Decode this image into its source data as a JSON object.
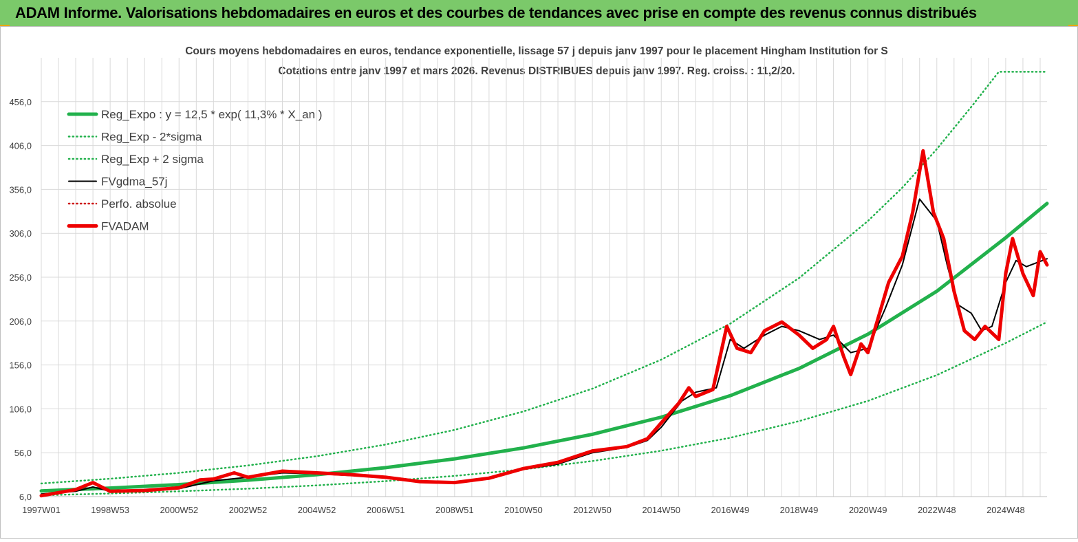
{
  "banner": {
    "title": "ADAM Informe. Valorisations hebdomadaires en euros et des courbes de tendances avec prise en compte des revenus connus distribués"
  },
  "colors": {
    "banner_bg": "#7bc96a",
    "reg_expo": "#22b14c",
    "band": "#22b14c",
    "fvgdma": "#000000",
    "perfo": "#cc0000",
    "fvadam": "#ee0000",
    "grid": "#d9d9d9"
  },
  "chart_data": {
    "type": "line",
    "title": "Cours moyens hebdomadaires en euros, tendance exponentielle, lissage 57 j depuis janv 1997 pour le placement Hingham Institution for S",
    "subtitle": "Cotations entre janv 1997 et mars 2026. Revenus DISTRIBUES depuis janv 1997. Reg. croiss. : 11,2/20.",
    "xlabel": "",
    "ylabel": "",
    "x_range_years": [
      1997.0,
      2026.2
    ],
    "ylim": [
      6,
      506
    ],
    "y_ticks": [
      "6,0",
      "56,0",
      "106,0",
      "156,0",
      "206,0",
      "256,0",
      "306,0",
      "356,0",
      "406,0",
      "456,0"
    ],
    "x_ticks": [
      {
        "label": "1997W01",
        "year": 1997.0
      },
      {
        "label": "1998W53",
        "year": 1999.0
      },
      {
        "label": "2000W52",
        "year": 2001.0
      },
      {
        "label": "2002W52",
        "year": 2003.0
      },
      {
        "label": "2004W52",
        "year": 2005.0
      },
      {
        "label": "2006W51",
        "year": 2007.0
      },
      {
        "label": "2008W51",
        "year": 2009.0
      },
      {
        "label": "2010W50",
        "year": 2011.0
      },
      {
        "label": "2012W50",
        "year": 2013.0
      },
      {
        "label": "2014W50",
        "year": 2015.0
      },
      {
        "label": "2016W49",
        "year": 2017.0
      },
      {
        "label": "2018W49",
        "year": 2019.0
      },
      {
        "label": "2020W49",
        "year": 2021.0
      },
      {
        "label": "2022W48",
        "year": 2023.0
      },
      {
        "label": "2024W48",
        "year": 2025.0
      }
    ],
    "grid": true,
    "legend_placement": "top-left",
    "legend": [
      {
        "name": "Reg_Expo : y = 12,5 * exp( 11,3% *  X_an )",
        "style": "solid-thick",
        "color": "#22b14c"
      },
      {
        "name": "Reg_Exp - 2*sigma",
        "style": "dotted",
        "color": "#22b14c"
      },
      {
        "name": "Reg_Exp + 2 sigma",
        "style": "dotted",
        "color": "#22b14c"
      },
      {
        "name": "FVgdma_57j",
        "style": "solid",
        "color": "#000000"
      },
      {
        "name": "Perfo. absolue",
        "style": "dotted",
        "color": "#cc0000"
      },
      {
        "name": "FVADAM",
        "style": "solid-thick",
        "color": "#ee0000"
      }
    ],
    "series": [
      {
        "name": "Reg_Expo : y = 12,5 * exp( 11,3% *  X_an )",
        "points": [
          [
            1997.0,
            12.5
          ],
          [
            1999.0,
            15.7
          ],
          [
            2001.0,
            19.7
          ],
          [
            2003.0,
            24.7
          ],
          [
            2005.0,
            31.0
          ],
          [
            2007.0,
            39.0
          ],
          [
            2009.0,
            49.0
          ],
          [
            2011.0,
            61.5
          ],
          [
            2013.0,
            77.0
          ],
          [
            2015.0,
            96.5
          ],
          [
            2017.0,
            121.0
          ],
          [
            2019.0,
            152.0
          ],
          [
            2021.0,
            191.0
          ],
          [
            2023.0,
            240.0
          ],
          [
            2025.0,
            301.0
          ],
          [
            2026.2,
            340.0
          ]
        ]
      },
      {
        "name": "Reg_Exp - 2*sigma",
        "points": [
          [
            1997.0,
            7.5
          ],
          [
            1999.0,
            9.5
          ],
          [
            2001.0,
            12.0
          ],
          [
            2003.0,
            15.0
          ],
          [
            2005.0,
            18.8
          ],
          [
            2007.0,
            23.6
          ],
          [
            2009.0,
            29.6
          ],
          [
            2011.0,
            37.0
          ],
          [
            2013.0,
            46.5
          ],
          [
            2015.0,
            58.3
          ],
          [
            2017.0,
            73.0
          ],
          [
            2019.0,
            92.0
          ],
          [
            2021.0,
            115.0
          ],
          [
            2023.0,
            144.5
          ],
          [
            2025.0,
            181.0
          ],
          [
            2026.2,
            205.0
          ]
        ]
      },
      {
        "name": "Reg_Exp + 2 sigma",
        "points": [
          [
            1997.0,
            21.0
          ],
          [
            1999.0,
            26.4
          ],
          [
            2001.0,
            33.0
          ],
          [
            2003.0,
            41.5
          ],
          [
            2005.0,
            52.0
          ],
          [
            2007.0,
            65.3
          ],
          [
            2009.0,
            82.0
          ],
          [
            2011.0,
            103.0
          ],
          [
            2013.0,
            129.0
          ],
          [
            2015.0,
            162.0
          ],
          [
            2017.0,
            203.0
          ],
          [
            2019.0,
            255.0
          ],
          [
            2021.0,
            320.0
          ],
          [
            2022.0,
            358.0
          ],
          [
            2023.0,
            402.0
          ],
          [
            2024.0,
            450.0
          ],
          [
            2024.8,
            490.0
          ],
          [
            2026.2,
            490.0
          ]
        ]
      },
      {
        "name": "FVgdma_57j",
        "points": [
          [
            1997.0,
            9
          ],
          [
            1998.0,
            12
          ],
          [
            1998.5,
            17
          ],
          [
            1999.0,
            12
          ],
          [
            2000.0,
            12
          ],
          [
            2001.0,
            15
          ],
          [
            2002.0,
            24
          ],
          [
            2003.0,
            28
          ],
          [
            2004.0,
            33
          ],
          [
            2005.0,
            32
          ],
          [
            2006.0,
            30
          ],
          [
            2007.0,
            29
          ],
          [
            2008.0,
            24
          ],
          [
            2009.0,
            22
          ],
          [
            2010.0,
            26
          ],
          [
            2011.0,
            37
          ],
          [
            2012.0,
            43
          ],
          [
            2013.0,
            56
          ],
          [
            2014.0,
            62
          ],
          [
            2014.6,
            70
          ],
          [
            2015.0,
            85
          ],
          [
            2015.6,
            115
          ],
          [
            2016.0,
            125
          ],
          [
            2016.6,
            130
          ],
          [
            2017.0,
            185
          ],
          [
            2017.4,
            175
          ],
          [
            2018.0,
            190
          ],
          [
            2018.5,
            200
          ],
          [
            2019.0,
            195
          ],
          [
            2019.6,
            185
          ],
          [
            2020.0,
            190
          ],
          [
            2020.5,
            170
          ],
          [
            2021.0,
            175
          ],
          [
            2021.5,
            220
          ],
          [
            2022.0,
            270
          ],
          [
            2022.5,
            345
          ],
          [
            2023.0,
            320
          ],
          [
            2023.3,
            270
          ],
          [
            2023.6,
            225
          ],
          [
            2024.0,
            215
          ],
          [
            2024.3,
            195
          ],
          [
            2024.6,
            200
          ],
          [
            2025.0,
            250
          ],
          [
            2025.3,
            275
          ],
          [
            2025.6,
            268
          ],
          [
            2026.2,
            277
          ]
        ]
      },
      {
        "name": "FVADAM",
        "points": [
          [
            1997.0,
            7
          ],
          [
            1998.0,
            14
          ],
          [
            1998.5,
            22
          ],
          [
            1999.0,
            12
          ],
          [
            2000.0,
            13
          ],
          [
            2001.0,
            16
          ],
          [
            2001.6,
            25
          ],
          [
            2002.0,
            26
          ],
          [
            2002.6,
            33
          ],
          [
            2003.0,
            28
          ],
          [
            2004.0,
            35
          ],
          [
            2005.0,
            33
          ],
          [
            2006.0,
            31
          ],
          [
            2007.0,
            28
          ],
          [
            2008.0,
            23
          ],
          [
            2009.0,
            22
          ],
          [
            2010.0,
            27
          ],
          [
            2011.0,
            38
          ],
          [
            2012.0,
            45
          ],
          [
            2013.0,
            58
          ],
          [
            2014.0,
            63
          ],
          [
            2014.6,
            72
          ],
          [
            2015.0,
            90
          ],
          [
            2015.5,
            112
          ],
          [
            2015.8,
            130
          ],
          [
            2016.0,
            120
          ],
          [
            2016.5,
            128
          ],
          [
            2016.9,
            200
          ],
          [
            2017.2,
            175
          ],
          [
            2017.6,
            170
          ],
          [
            2018.0,
            195
          ],
          [
            2018.5,
            205
          ],
          [
            2019.0,
            190
          ],
          [
            2019.4,
            175
          ],
          [
            2019.8,
            185
          ],
          [
            2020.0,
            200
          ],
          [
            2020.3,
            165
          ],
          [
            2020.5,
            145
          ],
          [
            2020.8,
            180
          ],
          [
            2021.0,
            170
          ],
          [
            2021.3,
            210
          ],
          [
            2021.6,
            250
          ],
          [
            2022.0,
            280
          ],
          [
            2022.3,
            330
          ],
          [
            2022.6,
            400
          ],
          [
            2022.9,
            330
          ],
          [
            2023.2,
            300
          ],
          [
            2023.5,
            240
          ],
          [
            2023.8,
            195
          ],
          [
            2024.1,
            185
          ],
          [
            2024.4,
            200
          ],
          [
            2024.8,
            185
          ],
          [
            2025.0,
            260
          ],
          [
            2025.2,
            300
          ],
          [
            2025.5,
            260
          ],
          [
            2025.8,
            235
          ],
          [
            2026.0,
            285
          ],
          [
            2026.2,
            270
          ]
        ]
      }
    ]
  }
}
